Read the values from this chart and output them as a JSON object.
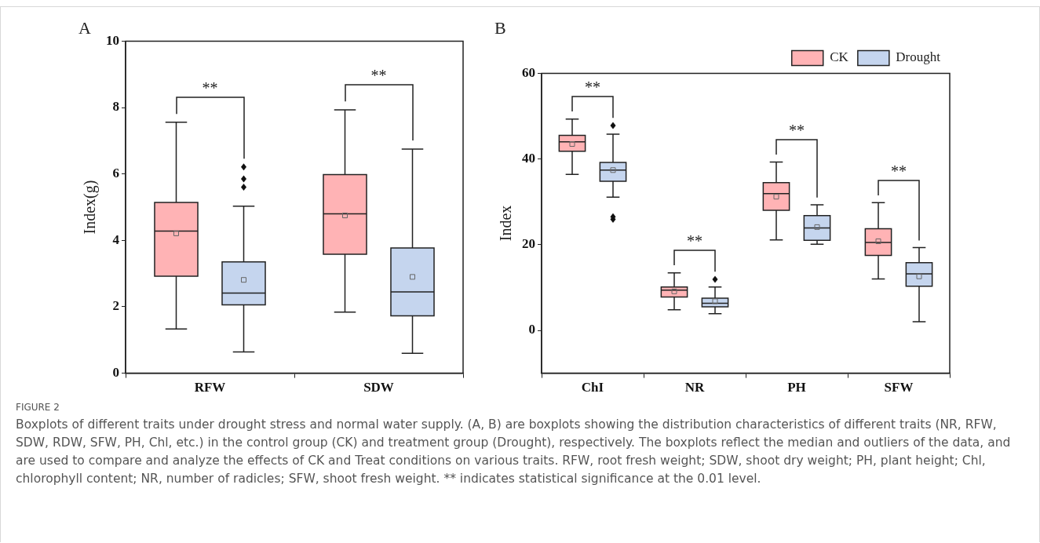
{
  "chart_data": [
    {
      "type": "box",
      "title": "A",
      "ylabel": "Index(g)",
      "categories": [
        "RFW",
        "SDW"
      ],
      "ylim": [
        0,
        10
      ],
      "yticks": [
        0,
        2,
        4,
        6,
        8,
        10
      ],
      "legend": false,
      "series": [
        {
          "color": "#ffb3b5",
          "boxes": [
            {
              "low": 1.33,
              "q1": 2.92,
              "median": 4.28,
              "q3": 5.14,
              "high": 7.56,
              "mean": 4.21
            },
            {
              "low": 1.84,
              "q1": 3.58,
              "median": 4.8,
              "q3": 5.98,
              "high": 7.93,
              "mean": 4.75
            }
          ]
        },
        {
          "color": "#c5d5ee",
          "boxes": [
            {
              "low": 0.64,
              "q1": 2.06,
              "median": 2.41,
              "q3": 3.35,
              "high": 5.03,
              "mean": 2.81,
              "outliers": [
                5.6,
                5.85,
                6.21
              ]
            },
            {
              "low": 0.6,
              "q1": 1.73,
              "median": 2.45,
              "q3": 3.77,
              "high": 6.75,
              "mean": 2.9
            }
          ]
        }
      ],
      "annotations": [
        "**",
        "**"
      ]
    },
    {
      "type": "box",
      "title": "B",
      "ylabel": "Index",
      "categories": [
        "ChI",
        "NR",
        "PH",
        "SFW"
      ],
      "ylim": [
        -10,
        60
      ],
      "yticks": [
        0,
        20,
        40,
        60
      ],
      "legend": "top right",
      "series": [
        {
          "name": "CK",
          "color": "#ffb3b5",
          "boxes": [
            {
              "low": 36.4,
              "q1": 41.8,
              "median": 44.0,
              "q3": 45.5,
              "high": 49.3,
              "mean": 43.5
            },
            {
              "low": 4.8,
              "q1": 7.8,
              "median": 9.4,
              "q3": 10.1,
              "high": 13.4,
              "mean": 9.1
            },
            {
              "low": 21.1,
              "q1": 28.0,
              "median": 31.9,
              "q3": 34.5,
              "high": 39.3,
              "mean": 31.2
            },
            {
              "low": 12.0,
              "q1": 17.5,
              "median": 20.5,
              "q3": 23.7,
              "high": 29.8,
              "mean": 20.8
            }
          ]
        },
        {
          "name": "Drought",
          "color": "#c5d5ee",
          "boxes": [
            {
              "low": 31.1,
              "q1": 34.8,
              "median": 37.4,
              "q3": 39.2,
              "high": 45.8,
              "mean": 37.4,
              "outliers": [
                25.9,
                26.5,
                47.8
              ]
            },
            {
              "low": 3.9,
              "q1": 5.5,
              "median": 6.3,
              "q3": 7.5,
              "high": 10.1,
              "mean": 6.8,
              "outliers": [
                11.9
              ]
            },
            {
              "low": 20.1,
              "q1": 21.0,
              "median": 23.9,
              "q3": 26.8,
              "high": 29.3,
              "mean": 24.1
            },
            {
              "low": 2.0,
              "q1": 10.3,
              "median": 13.2,
              "q3": 15.8,
              "high": 19.3,
              "mean": 12.6
            }
          ]
        }
      ],
      "annotations": [
        "**",
        "**",
        "**",
        "**",
        "FIGURE 2",
        "Boxplots of different traits under drought stress and normal water supply. (A, B) are boxplots showing the distribution characteristics of different traits (NR, RFW, SDW, RDW, SFW, PH, Chl, etc.) in the control group (CK) and treatment group (Drought), respectively. The boxplots reflect the median and outliers of the data, and are used to compare and analyze the effects of CK and Treat conditions on various traits. RFW, root fresh weight; SDW, shoot dry weight; PH, plant height; Chl, chlorophyll content; NR, number of radicles; SFW, shoot fresh weight. ** indicates statistical significance at the 0.01 level."
      ]
    }
  ]
}
